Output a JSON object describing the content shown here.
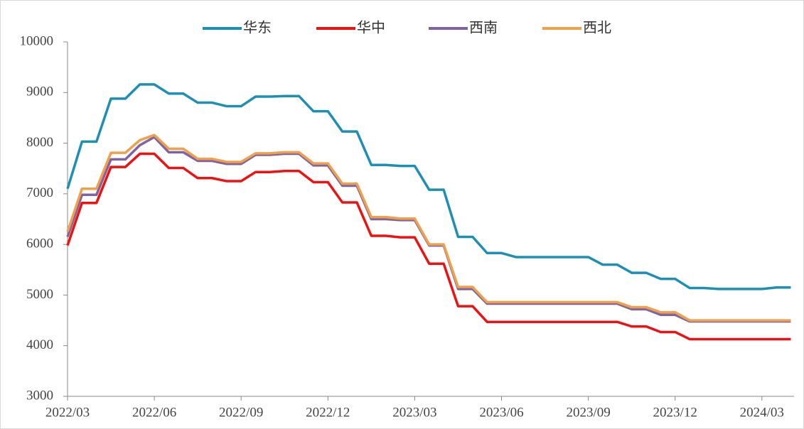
{
  "chart_data": {
    "type": "line",
    "categories": [
      "2022/03",
      null,
      null,
      null,
      null,
      null,
      "2022/06",
      null,
      null,
      null,
      null,
      null,
      "2022/09",
      null,
      null,
      null,
      null,
      null,
      "2022/12",
      null,
      null,
      null,
      null,
      null,
      "2023/03",
      null,
      null,
      null,
      null,
      null,
      "2023/06",
      null,
      null,
      null,
      null,
      null,
      "2023/09",
      null,
      null,
      null,
      null,
      null,
      "2023/12",
      null,
      null,
      null,
      null,
      null,
      "2024/03",
      null,
      null
    ],
    "series": [
      {
        "name": "华东",
        "color": "#1e8fb4",
        "values": [
          7100,
          8030,
          8030,
          8880,
          8880,
          9160,
          9160,
          8980,
          8980,
          8800,
          8800,
          8730,
          8730,
          8920,
          8920,
          8930,
          8930,
          8630,
          8630,
          8230,
          8230,
          7570,
          7570,
          7550,
          7550,
          7080,
          7080,
          6150,
          6150,
          5830,
          5830,
          5750,
          5750,
          5750,
          5750,
          5750,
          5750,
          5600,
          5600,
          5440,
          5440,
          5320,
          5320,
          5140,
          5140,
          5120,
          5120,
          5120,
          5120,
          5150,
          5150
        ]
      },
      {
        "name": "华中",
        "color": "#ee1111",
        "values": [
          5980,
          6820,
          6820,
          7530,
          7530,
          7790,
          7790,
          7510,
          7510,
          7310,
          7310,
          7250,
          7250,
          7430,
          7430,
          7450,
          7450,
          7230,
          7230,
          6830,
          6830,
          6170,
          6170,
          6140,
          6140,
          5620,
          5620,
          4780,
          4780,
          4470,
          4470,
          4470,
          4470,
          4470,
          4470,
          4470,
          4470,
          4470,
          4470,
          4380,
          4380,
          4270,
          4270,
          4130,
          4130,
          4130,
          4130,
          4130,
          4130,
          4130,
          4130
        ]
      },
      {
        "name": "西南",
        "color": "#8064a2",
        "values": [
          6150,
          6980,
          6980,
          7680,
          7680,
          7960,
          8120,
          7820,
          7820,
          7650,
          7650,
          7590,
          7590,
          7770,
          7770,
          7790,
          7790,
          7560,
          7560,
          7160,
          7160,
          6500,
          6500,
          6480,
          6480,
          5980,
          5980,
          5120,
          5120,
          4830,
          4830,
          4830,
          4830,
          4830,
          4830,
          4830,
          4830,
          4830,
          4830,
          4720,
          4720,
          4610,
          4610,
          4480,
          4480,
          4480,
          4480,
          4480,
          4480,
          4480,
          4480
        ]
      },
      {
        "name": "西北",
        "color": "#f0a04b",
        "values": [
          6250,
          7100,
          7100,
          7810,
          7810,
          8060,
          8160,
          7890,
          7890,
          7690,
          7690,
          7630,
          7630,
          7800,
          7800,
          7820,
          7820,
          7600,
          7600,
          7200,
          7200,
          6540,
          6540,
          6510,
          6510,
          6000,
          6000,
          5160,
          5160,
          4860,
          4860,
          4860,
          4860,
          4860,
          4860,
          4860,
          4860,
          4860,
          4860,
          4760,
          4760,
          4660,
          4660,
          4500,
          4500,
          4500,
          4500,
          4500,
          4500,
          4500,
          4500
        ]
      }
    ],
    "ylim": [
      3000,
      10000
    ],
    "yticks": [
      3000,
      4000,
      5000,
      6000,
      7000,
      8000,
      9000,
      10000
    ],
    "legend": "top"
  }
}
